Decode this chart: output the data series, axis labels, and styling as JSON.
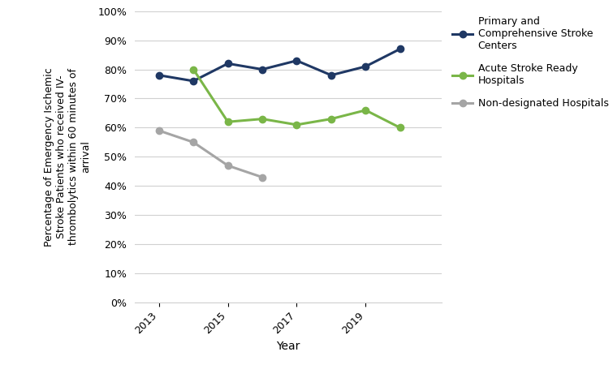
{
  "years_primary": [
    2013,
    2014,
    2015,
    2016,
    2017,
    2018,
    2019,
    2020
  ],
  "values_primary": [
    0.78,
    0.76,
    0.82,
    0.8,
    0.83,
    0.78,
    0.81,
    0.87
  ],
  "years_acute": [
    2014,
    2015,
    2016,
    2017,
    2018,
    2019,
    2020
  ],
  "values_acute": [
    0.8,
    0.62,
    0.63,
    0.61,
    0.63,
    0.66,
    0.6
  ],
  "years_non": [
    2013,
    2014,
    2015,
    2016
  ],
  "values_non": [
    0.59,
    0.55,
    0.47,
    0.43
  ],
  "color_primary": "#1F3864",
  "color_acute": "#7AB648",
  "color_non": "#A5A5A5",
  "xlabel": "Year",
  "ylabel": "Percentage of Emergency Ischemic\nStroke Patients who received IV-\nthrombolytics within 60 minutes of\narrival",
  "legend_primary": "Primary and\nComprehensive Stroke\nCenters",
  "legend_acute": "Acute Stroke Ready\nHospitals",
  "legend_non": "Non-designated Hospitals",
  "ylim": [
    0.0,
    1.0
  ],
  "yticks": [
    0.0,
    0.1,
    0.2,
    0.3,
    0.4,
    0.5,
    0.6,
    0.7,
    0.8,
    0.9,
    1.0
  ],
  "xtick_labels": [
    "2013",
    "2015",
    "2017",
    "2019"
  ],
  "xtick_positions": [
    2013,
    2015,
    2017,
    2019
  ],
  "background_color": "#FFFFFF",
  "xlim_left": 2012.3,
  "xlim_right": 2021.2
}
